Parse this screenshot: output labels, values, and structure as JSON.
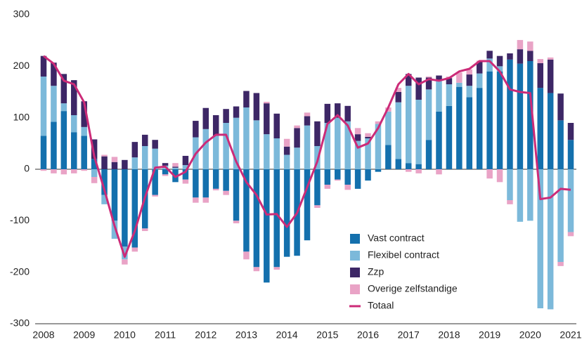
{
  "chart_data": {
    "type": "bar",
    "stacked": true,
    "categories": [
      "2008",
      null,
      null,
      null,
      "2009",
      null,
      null,
      null,
      "2010",
      null,
      null,
      null,
      "2011",
      null,
      null,
      null,
      "2012",
      null,
      null,
      null,
      "2013",
      null,
      null,
      null,
      "2014",
      null,
      null,
      null,
      "2015",
      null,
      null,
      null,
      "2016",
      null,
      null,
      null,
      "2017",
      null,
      null,
      null,
      "2018",
      null,
      null,
      null,
      "2019",
      null,
      null,
      null,
      "2020",
      null,
      null,
      null,
      "2021"
    ],
    "series": [
      {
        "name": "Vast contract",
        "color": "#1470ad",
        "values": [
          65,
          92,
          113,
          72,
          65,
          20,
          -50,
          -100,
          -150,
          -152,
          -115,
          -50,
          -10,
          -25,
          -20,
          -55,
          -55,
          -38,
          -42,
          -100,
          -160,
          -190,
          -220,
          -190,
          -170,
          -168,
          -138,
          -70,
          -30,
          -20,
          -30,
          -38,
          -22,
          -5,
          47,
          20,
          12,
          10,
          57,
          112,
          123,
          160,
          140,
          158,
          190,
          190,
          213,
          205,
          210,
          158,
          148,
          95,
          57
        ]
      },
      {
        "name": "Flexibel contract",
        "color": "#7cb9da",
        "values": [
          115,
          70,
          15,
          33,
          17,
          -15,
          -18,
          -35,
          -25,
          23,
          45,
          40,
          7,
          3,
          8,
          62,
          78,
          65,
          90,
          100,
          120,
          95,
          68,
          60,
          28,
          42,
          85,
          45,
          90,
          100,
          93,
          55,
          60,
          88,
          65,
          110,
          150,
          125,
          98,
          60,
          42,
          8,
          22,
          28,
          25,
          10,
          -60,
          -102,
          -100,
          -270,
          -272,
          -180,
          -122
        ]
      },
      {
        "name": "Zzp",
        "color": "#3d2766",
        "values": [
          40,
          45,
          57,
          68,
          50,
          38,
          25,
          14,
          18,
          30,
          22,
          17,
          5,
          2,
          18,
          32,
          41,
          40,
          27,
          22,
          32,
          53,
          60,
          48,
          16,
          38,
          18,
          48,
          37,
          28,
          30,
          13,
          3,
          0,
          0,
          20,
          23,
          43,
          23,
          10,
          12,
          0,
          22,
          22,
          15,
          20,
          12,
          28,
          20,
          48,
          65,
          52,
          33
        ]
      },
      {
        "name": "Overige zelfstandige",
        "color": "#e9a3c6",
        "values": [
          -3,
          -8,
          -10,
          -8,
          -3,
          -12,
          3,
          10,
          -10,
          -8,
          -5,
          -3,
          -3,
          7,
          -8,
          -10,
          -10,
          -3,
          -8,
          -5,
          -15,
          -8,
          3,
          -5,
          15,
          5,
          7,
          -5,
          -8,
          -2,
          -10,
          12,
          7,
          5,
          8,
          8,
          -5,
          -8,
          2,
          -10,
          3,
          20,
          10,
          3,
          -18,
          -25,
          -8,
          18,
          18,
          8,
          4,
          -8,
          -8
        ]
      },
      {
        "name": "Totaal",
        "color": "#cc2b78",
        "type": "line",
        "values": [
          220,
          205,
          172,
          165,
          130,
          25,
          -40,
          -110,
          -170,
          -120,
          -55,
          3,
          5,
          -15,
          -5,
          30,
          52,
          67,
          67,
          15,
          -25,
          -50,
          -88,
          -87,
          -112,
          -85,
          -35,
          15,
          88,
          105,
          85,
          42,
          50,
          80,
          120,
          165,
          185,
          165,
          175,
          172,
          177,
          190,
          195,
          210,
          210,
          190,
          155,
          150,
          148,
          -58,
          -55,
          -38,
          -40
        ]
      }
    ],
    "ylim": [
      -300,
      300
    ],
    "yticks": [
      300,
      200,
      100,
      0,
      -100,
      -200,
      -300
    ],
    "legend": "lower right",
    "grid": false
  }
}
